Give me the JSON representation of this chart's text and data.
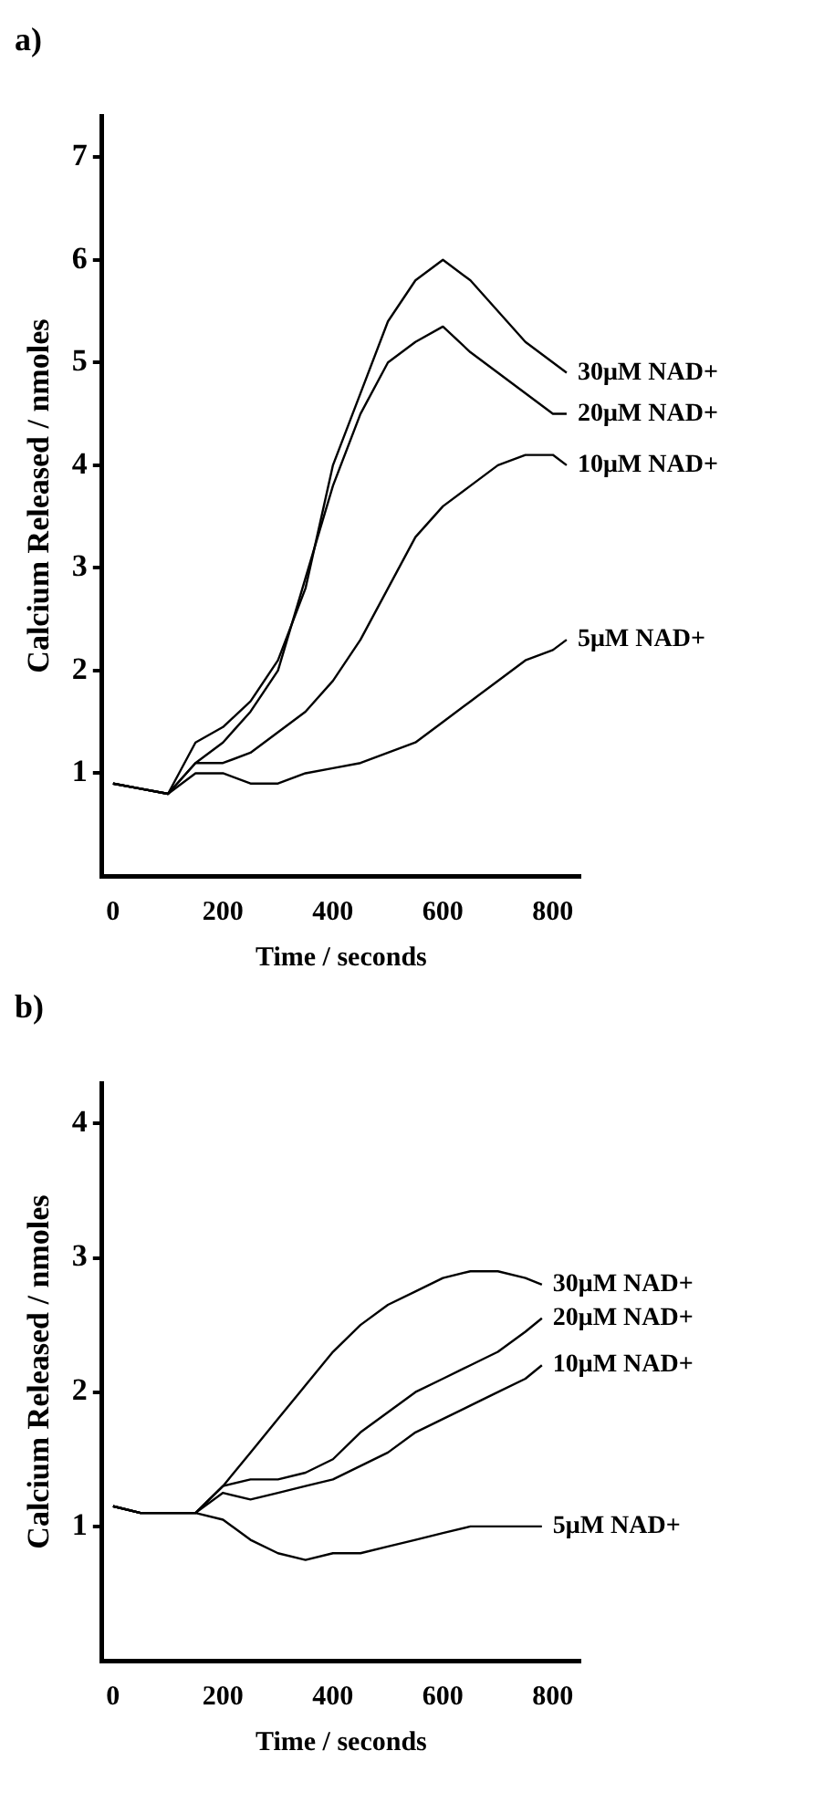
{
  "chart_data": [
    {
      "type": "line",
      "title": "a)",
      "xlabel": "Time / seconds",
      "ylabel": "Calcium Released / nmoles",
      "x": [
        0,
        50,
        100,
        150,
        200,
        250,
        300,
        350,
        400,
        450,
        500,
        550,
        600,
        650,
        700,
        750,
        800,
        825
      ],
      "series": [
        {
          "name": "30μM NAD+",
          "color": "#000000",
          "values": [
            0.9,
            0.85,
            0.8,
            1.3,
            1.45,
            1.7,
            2.1,
            2.8,
            4.0,
            4.7,
            5.4,
            5.8,
            6.0,
            5.8,
            5.5,
            5.2,
            5.0,
            4.9
          ]
        },
        {
          "name": "20μM NAD+",
          "color": "#000000",
          "values": [
            0.9,
            0.85,
            0.8,
            1.1,
            1.3,
            1.6,
            2.0,
            2.9,
            3.8,
            4.5,
            5.0,
            5.2,
            5.35,
            5.1,
            4.9,
            4.7,
            4.5,
            4.5
          ]
        },
        {
          "name": "10μM NAD+",
          "color": "#000000",
          "values": [
            0.9,
            0.85,
            0.8,
            1.1,
            1.1,
            1.2,
            1.4,
            1.6,
            1.9,
            2.3,
            2.8,
            3.3,
            3.6,
            3.8,
            4.0,
            4.1,
            4.1,
            4.0
          ]
        },
        {
          "name": "5μM NAD+",
          "color": "#000000",
          "values": [
            0.9,
            0.85,
            0.8,
            1.0,
            1.0,
            0.9,
            0.9,
            1.0,
            1.05,
            1.1,
            1.2,
            1.3,
            1.5,
            1.7,
            1.9,
            2.1,
            2.2,
            2.3
          ]
        }
      ],
      "xlim": [
        -20,
        850
      ],
      "xticks": [
        0,
        200,
        400,
        600,
        800
      ],
      "ylim": [
        0,
        7.4
      ],
      "yticks": [
        1,
        2,
        3,
        4,
        5,
        6,
        7
      ],
      "grid": false,
      "legend": false,
      "marker": "none",
      "line_style": "solid"
    },
    {
      "type": "line",
      "title": "b)",
      "xlabel": "Time / seconds",
      "ylabel": "Calcium Released / nmoles",
      "x": [
        0,
        50,
        100,
        150,
        200,
        250,
        300,
        350,
        400,
        450,
        500,
        550,
        600,
        650,
        700,
        750,
        780
      ],
      "series": [
        {
          "name": "30μM NAD+",
          "color": "#000000",
          "values": [
            1.15,
            1.1,
            1.1,
            1.1,
            1.3,
            1.55,
            1.8,
            2.05,
            2.3,
            2.5,
            2.65,
            2.75,
            2.85,
            2.9,
            2.9,
            2.85,
            2.8
          ]
        },
        {
          "name": "20μM NAD+",
          "color": "#000000",
          "values": [
            1.15,
            1.1,
            1.1,
            1.1,
            1.3,
            1.35,
            1.35,
            1.4,
            1.5,
            1.7,
            1.85,
            2.0,
            2.1,
            2.2,
            2.3,
            2.45,
            2.55
          ]
        },
        {
          "name": "10μM NAD+",
          "color": "#000000",
          "values": [
            1.15,
            1.1,
            1.1,
            1.1,
            1.25,
            1.2,
            1.25,
            1.3,
            1.35,
            1.45,
            1.55,
            1.7,
            1.8,
            1.9,
            2.0,
            2.1,
            2.2
          ]
        },
        {
          "name": "5μM NAD+",
          "color": "#000000",
          "values": [
            1.15,
            1.1,
            1.1,
            1.1,
            1.05,
            0.9,
            0.8,
            0.75,
            0.8,
            0.8,
            0.85,
            0.9,
            0.95,
            1.0,
            1.0,
            1.0,
            1.0
          ]
        }
      ],
      "xlim": [
        -20,
        850
      ],
      "xticks": [
        0,
        200,
        400,
        600,
        800
      ],
      "ylim": [
        0,
        4.3
      ],
      "yticks": [
        1,
        2,
        3,
        4
      ],
      "grid": false,
      "legend": false,
      "marker": "none",
      "line_style": "solid"
    }
  ]
}
